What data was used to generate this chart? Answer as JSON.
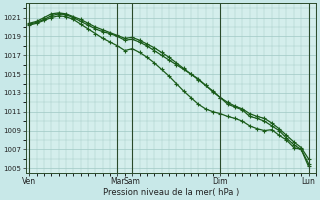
{
  "background_color": "#c8e8e8",
  "plot_bg_color": "#d4eeec",
  "grid_color": "#a0c8c4",
  "line_color": "#1a5c1a",
  "xlabel": "Pression niveau de la mer( hPa )",
  "ylim": [
    1004.5,
    1022.5
  ],
  "yticks": [
    1005,
    1007,
    1009,
    1011,
    1013,
    1015,
    1017,
    1019,
    1021
  ],
  "xtick_labels": [
    "Ven",
    "Mar",
    "Sam",
    "Dim",
    "Lun"
  ],
  "xtick_pos": [
    0,
    12,
    14,
    26,
    38
  ],
  "vlines": [
    0,
    12,
    14,
    26,
    38
  ],
  "xlim": [
    -0.5,
    39
  ],
  "series1_x": [
    0,
    1,
    2,
    3,
    4,
    5,
    6,
    7,
    8,
    9,
    10,
    11,
    12,
    13,
    14,
    15,
    16,
    17,
    18,
    19,
    20,
    21,
    22,
    23,
    24,
    25,
    26,
    27,
    28,
    29,
    30,
    31,
    32,
    33,
    34,
    35,
    36,
    37,
    38
  ],
  "series1_y": [
    1020.3,
    1020.5,
    1020.8,
    1021.2,
    1021.4,
    1021.3,
    1021.0,
    1020.6,
    1020.2,
    1019.8,
    1019.5,
    1019.3,
    1019.0,
    1018.6,
    1018.7,
    1018.4,
    1018.0,
    1017.5,
    1017.0,
    1016.5,
    1016.0,
    1015.5,
    1015.0,
    1014.5,
    1013.8,
    1013.2,
    1012.5,
    1011.8,
    1011.5,
    1011.2,
    1010.5,
    1010.3,
    1010.0,
    1009.5,
    1009.0,
    1008.2,
    1007.5,
    1007.0,
    1005.5
  ],
  "series2_x": [
    0,
    1,
    2,
    3,
    4,
    5,
    6,
    7,
    8,
    9,
    10,
    11,
    12,
    13,
    14,
    15,
    16,
    17,
    18,
    19,
    20,
    21,
    22,
    23,
    24,
    25,
    26,
    27,
    28,
    29,
    30,
    31,
    32,
    33,
    34,
    35,
    36,
    37,
    38
  ],
  "series2_y": [
    1020.4,
    1020.6,
    1021.0,
    1021.4,
    1021.5,
    1021.4,
    1021.1,
    1020.8,
    1020.4,
    1020.0,
    1019.7,
    1019.4,
    1019.1,
    1018.8,
    1018.9,
    1018.6,
    1018.2,
    1017.8,
    1017.3,
    1016.8,
    1016.2,
    1015.6,
    1015.0,
    1014.4,
    1013.8,
    1013.1,
    1012.5,
    1012.0,
    1011.6,
    1011.3,
    1010.8,
    1010.5,
    1010.3,
    1009.8,
    1009.2,
    1008.5,
    1007.8,
    1007.2,
    1006.0
  ],
  "series3_x": [
    0,
    1,
    2,
    3,
    4,
    5,
    6,
    7,
    8,
    9,
    10,
    11,
    12,
    13,
    14,
    15,
    16,
    17,
    18,
    19,
    20,
    21,
    22,
    23,
    24,
    25,
    26,
    27,
    28,
    29,
    30,
    31,
    32,
    33,
    34,
    35,
    36,
    37,
    38
  ],
  "series3_y": [
    1020.2,
    1020.4,
    1020.7,
    1021.0,
    1021.2,
    1021.1,
    1020.8,
    1020.3,
    1019.8,
    1019.3,
    1018.8,
    1018.4,
    1018.0,
    1017.5,
    1017.7,
    1017.3,
    1016.8,
    1016.2,
    1015.5,
    1014.8,
    1014.0,
    1013.2,
    1012.5,
    1011.8,
    1011.3,
    1011.0,
    1010.8,
    1010.5,
    1010.3,
    1010.0,
    1009.5,
    1009.2,
    1009.0,
    1009.1,
    1008.5,
    1008.0,
    1007.2,
    1007.0,
    1005.2
  ]
}
